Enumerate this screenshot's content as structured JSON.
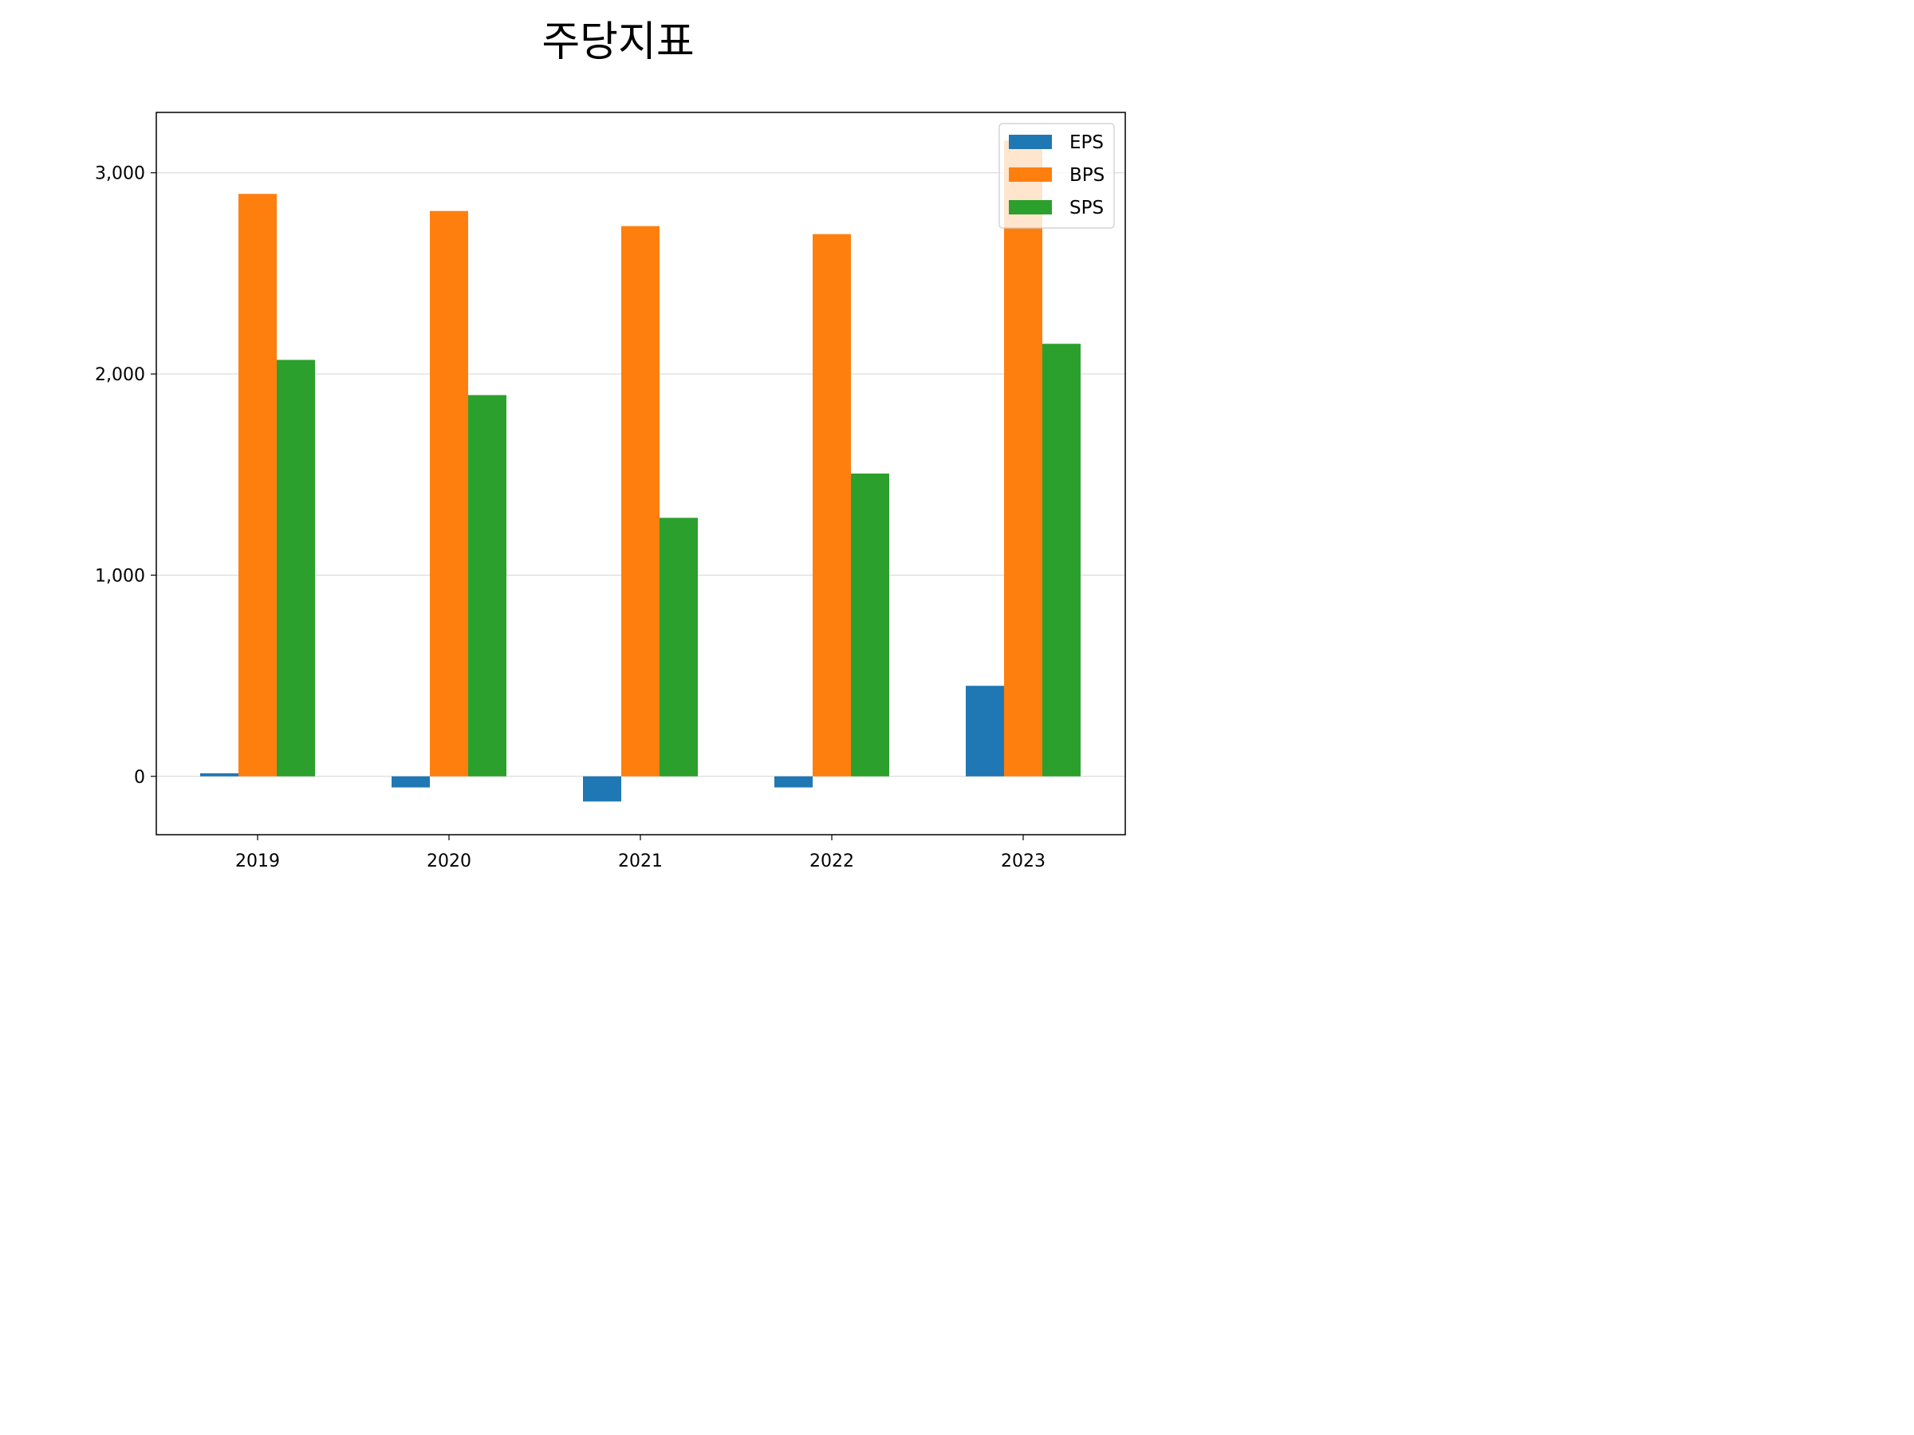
{
  "chart_data": {
    "type": "bar",
    "title": "주당지표",
    "xlabel": "",
    "ylabel": "",
    "categories": [
      "2019",
      "2020",
      "2021",
      "2022",
      "2023"
    ],
    "series": [
      {
        "name": "EPS",
        "color": "#1f77b4",
        "values": [
          15,
          -55,
          -125,
          -55,
          450
        ]
      },
      {
        "name": "BPS",
        "color": "#ff7f0e",
        "values": [
          2895,
          2810,
          2735,
          2695,
          3160
        ]
      },
      {
        "name": "SPS",
        "color": "#2ca02c",
        "values": [
          2070,
          1895,
          1285,
          1505,
          2150
        ]
      }
    ],
    "ylim": [
      -290,
      3300
    ],
    "yticks": [
      0,
      1000,
      2000,
      3000
    ],
    "ytick_labels": [
      "0",
      "1,000",
      "2,000",
      "3,000"
    ],
    "grid": "horizontal",
    "legend_position": "top-right"
  }
}
